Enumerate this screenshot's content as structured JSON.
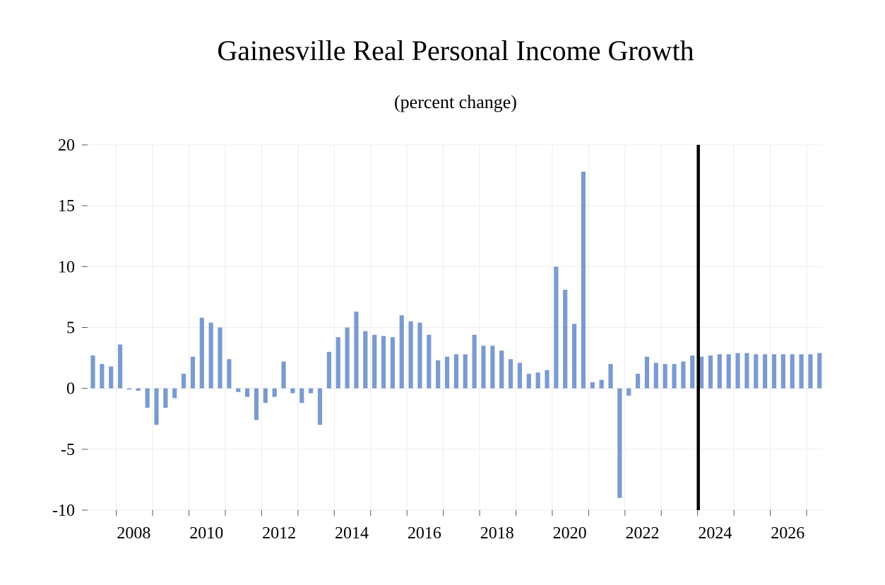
{
  "colors": {
    "bar": "#7b9bd0",
    "grid": "#ececec",
    "divider": "#000000",
    "axis": "#555555"
  },
  "chart_data": {
    "type": "bar",
    "title": "Gainesville Real Personal Income Growth",
    "subtitle": "(percent change)",
    "xlabel": "",
    "ylabel": "",
    "ylim": [
      -10,
      20
    ],
    "yticks": [
      20,
      15,
      10,
      5,
      0,
      -5,
      -10
    ],
    "ytick_labels": [
      "20",
      "15",
      "10",
      "5",
      "0",
      "-5",
      "-10"
    ],
    "xticks": [
      "2008",
      "2010",
      "2012",
      "2014",
      "2016",
      "2018",
      "2020",
      "2022",
      "2024",
      "2026"
    ],
    "grid": true,
    "legend": "none",
    "forecast_divider_at": "2024Q1",
    "categories": [
      "2007Q2",
      "2007Q3",
      "2007Q4",
      "2008Q1",
      "2008Q2",
      "2008Q3",
      "2008Q4",
      "2009Q1",
      "2009Q2",
      "2009Q3",
      "2009Q4",
      "2010Q1",
      "2010Q2",
      "2010Q3",
      "2010Q4",
      "2011Q1",
      "2011Q2",
      "2011Q3",
      "2011Q4",
      "2012Q1",
      "2012Q2",
      "2012Q3",
      "2012Q4",
      "2013Q1",
      "2013Q2",
      "2013Q3",
      "2013Q4",
      "2014Q1",
      "2014Q2",
      "2014Q3",
      "2014Q4",
      "2015Q1",
      "2015Q2",
      "2015Q3",
      "2015Q4",
      "2016Q1",
      "2016Q2",
      "2016Q3",
      "2016Q4",
      "2017Q1",
      "2017Q2",
      "2017Q3",
      "2017Q4",
      "2018Q1",
      "2018Q2",
      "2018Q3",
      "2018Q4",
      "2019Q1",
      "2019Q2",
      "2019Q3",
      "2019Q4",
      "2020Q1",
      "2020Q2",
      "2020Q3",
      "2020Q4",
      "2021Q1",
      "2021Q2",
      "2021Q3",
      "2021Q4",
      "2022Q1",
      "2022Q2",
      "2022Q3",
      "2022Q4",
      "2023Q1",
      "2023Q2",
      "2023Q3",
      "2023Q4",
      "2024Q1",
      "2024Q2",
      "2024Q3",
      "2024Q4",
      "2025Q1",
      "2025Q2",
      "2025Q3",
      "2025Q4",
      "2026Q1",
      "2026Q2",
      "2026Q3",
      "2026Q4",
      "2027Q1",
      "2027Q2"
    ],
    "values": [
      2.7,
      2.0,
      1.8,
      3.6,
      -0.1,
      -0.2,
      -1.6,
      -3.0,
      -1.6,
      -0.8,
      1.2,
      2.6,
      5.8,
      5.4,
      5.0,
      2.4,
      -0.3,
      -0.7,
      -2.6,
      -1.2,
      -0.7,
      2.2,
      -0.4,
      -1.2,
      -0.4,
      -3.0,
      3.0,
      4.2,
      5.0,
      6.3,
      4.7,
      4.4,
      4.3,
      4.2,
      6.0,
      5.5,
      5.4,
      4.4,
      2.3,
      2.6,
      2.8,
      2.8,
      4.4,
      3.5,
      3.5,
      3.1,
      2.4,
      2.1,
      1.2,
      1.3,
      1.5,
      10.0,
      8.1,
      5.3,
      17.8,
      0.5,
      0.7,
      2.0,
      -9.0,
      -0.6,
      1.2,
      2.6,
      2.1,
      2.0,
      2.0,
      2.2,
      2.7,
      2.6,
      2.7,
      2.8,
      2.8,
      2.9,
      2.9,
      2.8,
      2.8,
      2.8,
      2.8,
      2.8,
      2.8,
      2.8,
      2.9
    ]
  }
}
